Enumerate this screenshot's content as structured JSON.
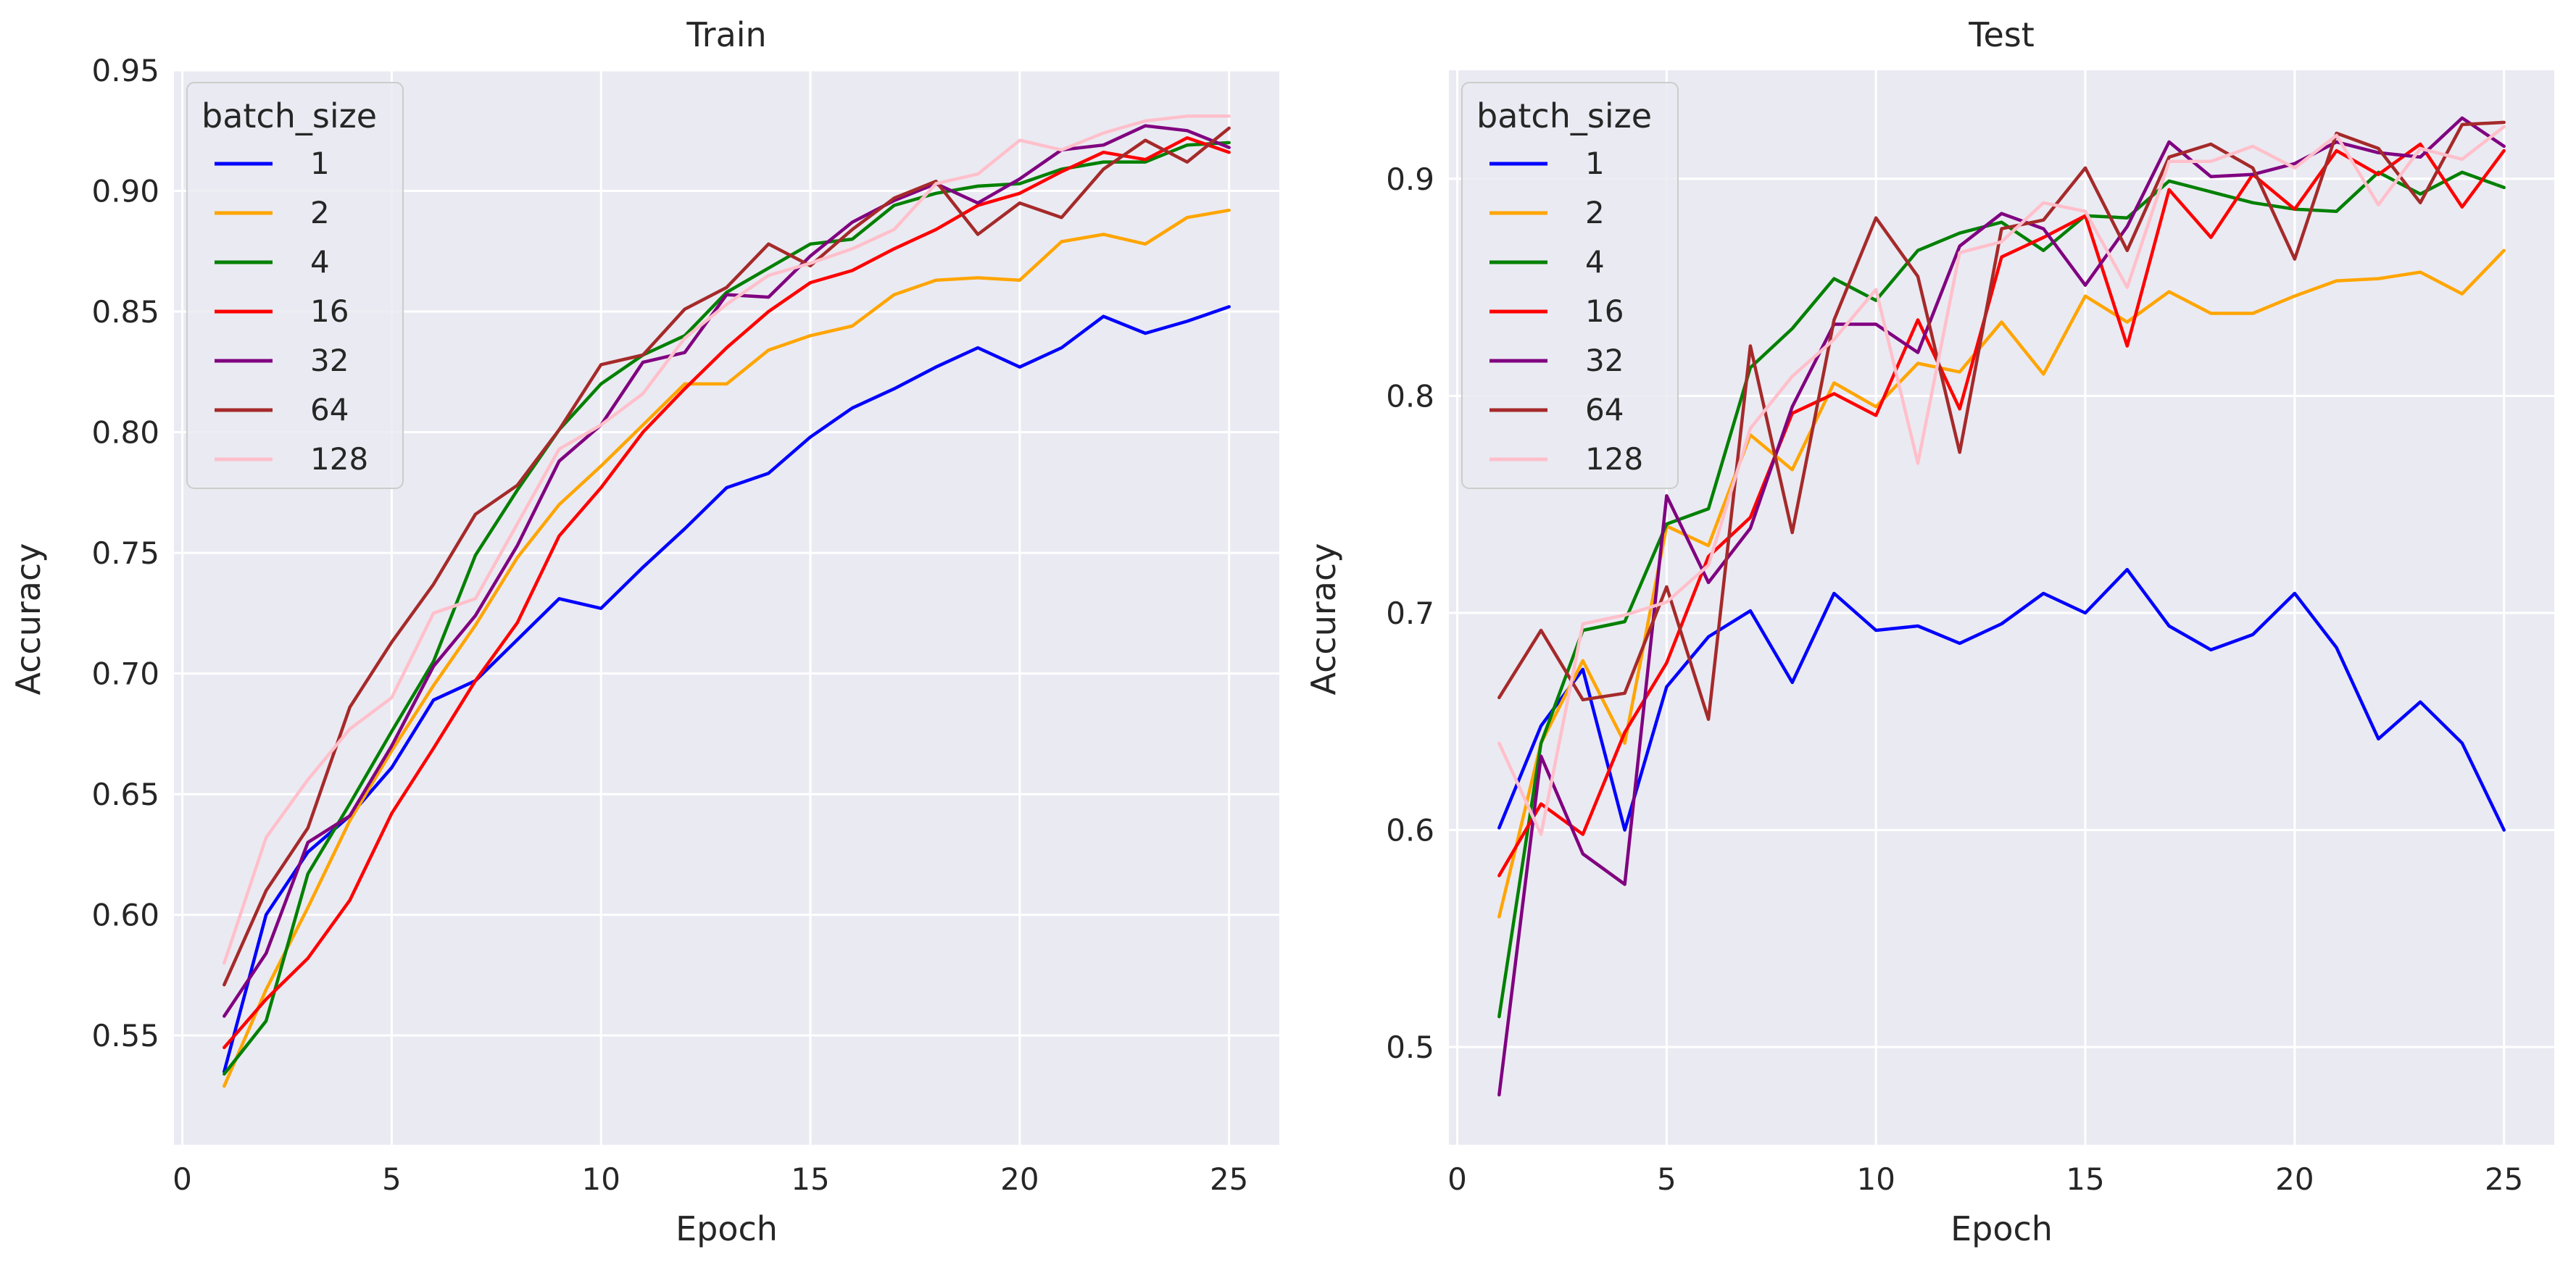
{
  "chart_data": [
    {
      "type": "line",
      "title": "Train",
      "xlabel": "Epoch",
      "ylabel": "Accuracy",
      "xlim": [
        -0.2,
        26.2
      ],
      "ylim": [
        0.5047,
        0.95
      ],
      "xticks": [
        0,
        5,
        10,
        15,
        20,
        25
      ],
      "xtick_labels": [
        "0",
        "5",
        "10",
        "15",
        "20",
        "25"
      ],
      "yticks": [
        0.55,
        0.6,
        0.65,
        0.7,
        0.75,
        0.8,
        0.85,
        0.9,
        0.95
      ],
      "ytick_labels": [
        "0.55",
        "0.60",
        "0.65",
        "0.70",
        "0.75",
        "0.80",
        "0.85",
        "0.90",
        "0.95"
      ],
      "grid": true,
      "legend": {
        "title": "batch_size",
        "position": "top-left"
      },
      "x": [
        1,
        2,
        3,
        4,
        5,
        6,
        7,
        8,
        9,
        10,
        11,
        12,
        13,
        14,
        15,
        16,
        17,
        18,
        19,
        20,
        21,
        22,
        23,
        24,
        25
      ],
      "series": [
        {
          "name": "1",
          "color": "#0000ff",
          "values": [
            0.535,
            0.6,
            0.626,
            0.641,
            0.661,
            0.689,
            0.697,
            0.714,
            0.731,
            0.727,
            0.744,
            0.76,
            0.777,
            0.783,
            0.798,
            0.81,
            0.818,
            0.827,
            0.835,
            0.827,
            0.835,
            0.848,
            0.841,
            0.846,
            0.852
          ]
        },
        {
          "name": "2",
          "color": "#ffa500",
          "values": [
            0.529,
            0.569,
            0.603,
            0.639,
            0.668,
            0.695,
            0.72,
            0.748,
            0.77,
            0.786,
            0.803,
            0.82,
            0.82,
            0.834,
            0.84,
            0.844,
            0.857,
            0.863,
            0.864,
            0.863,
            0.879,
            0.882,
            0.878,
            0.889,
            0.892
          ]
        },
        {
          "name": "4",
          "color": "#008000",
          "values": [
            0.534,
            0.556,
            0.617,
            0.646,
            0.676,
            0.705,
            0.749,
            0.776,
            0.801,
            0.82,
            0.832,
            0.84,
            0.858,
            0.868,
            0.878,
            0.88,
            0.894,
            0.899,
            0.902,
            0.903,
            0.909,
            0.912,
            0.912,
            0.919,
            0.92
          ]
        },
        {
          "name": "16",
          "color": "#ff0000",
          "values": [
            0.545,
            0.565,
            0.582,
            0.606,
            0.642,
            0.669,
            0.697,
            0.721,
            0.757,
            0.777,
            0.8,
            0.818,
            0.835,
            0.85,
            0.862,
            0.867,
            0.876,
            0.884,
            0.894,
            0.899,
            0.908,
            0.916,
            0.913,
            0.922,
            0.916
          ]
        },
        {
          "name": "32",
          "color": "#800080",
          "values": [
            0.558,
            0.584,
            0.63,
            0.641,
            0.67,
            0.703,
            0.724,
            0.753,
            0.788,
            0.803,
            0.829,
            0.833,
            0.857,
            0.856,
            0.873,
            0.887,
            0.896,
            0.903,
            0.895,
            0.905,
            0.917,
            0.919,
            0.927,
            0.925,
            0.918
          ]
        },
        {
          "name": "64",
          "color": "#a52a2a",
          "values": [
            0.571,
            0.61,
            0.636,
            0.686,
            0.713,
            0.737,
            0.766,
            0.778,
            0.801,
            0.828,
            0.832,
            0.851,
            0.86,
            0.878,
            0.869,
            0.884,
            0.897,
            0.904,
            0.882,
            0.895,
            0.889,
            0.909,
            0.921,
            0.912,
            0.926
          ]
        },
        {
          "name": "128",
          "color": "#ffc0cb",
          "values": [
            0.58,
            0.632,
            0.656,
            0.677,
            0.69,
            0.725,
            0.731,
            0.762,
            0.793,
            0.803,
            0.816,
            0.839,
            0.853,
            0.865,
            0.87,
            0.876,
            0.884,
            0.903,
            0.907,
            0.921,
            0.917,
            0.924,
            0.929,
            0.931,
            0.931
          ]
        }
      ]
    },
    {
      "type": "line",
      "title": "Test",
      "xlabel": "Epoch",
      "ylabel": "Accuracy",
      "xlim": [
        -0.2,
        26.2
      ],
      "ylim": [
        0.455,
        0.95
      ],
      "xticks": [
        0,
        5,
        10,
        15,
        20,
        25
      ],
      "xtick_labels": [
        "0",
        "5",
        "10",
        "15",
        "20",
        "25"
      ],
      "yticks": [
        0.5,
        0.6,
        0.7,
        0.8,
        0.9
      ],
      "ytick_labels": [
        "0.5",
        "0.6",
        "0.7",
        "0.8",
        "0.9"
      ],
      "grid": true,
      "legend": {
        "title": "batch_size",
        "position": "top-left"
      },
      "x": [
        1,
        2,
        3,
        4,
        5,
        6,
        7,
        8,
        9,
        10,
        11,
        12,
        13,
        14,
        15,
        16,
        17,
        18,
        19,
        20,
        21,
        22,
        23,
        24,
        25
      ],
      "series": [
        {
          "name": "1",
          "color": "#0000ff",
          "values": [
            0.601,
            0.648,
            0.674,
            0.6,
            0.666,
            0.689,
            0.701,
            0.668,
            0.709,
            0.692,
            0.694,
            0.686,
            0.695,
            0.709,
            0.7,
            0.72,
            0.694,
            0.683,
            0.69,
            0.709,
            0.684,
            0.642,
            0.659,
            0.64,
            0.6
          ]
        },
        {
          "name": "2",
          "color": "#ffa500",
          "values": [
            0.56,
            0.64,
            0.678,
            0.64,
            0.74,
            0.731,
            0.782,
            0.766,
            0.806,
            0.795,
            0.815,
            0.811,
            0.834,
            0.81,
            0.846,
            0.834,
            0.848,
            0.838,
            0.838,
            0.846,
            0.853,
            0.854,
            0.857,
            0.847,
            0.867
          ]
        },
        {
          "name": "4",
          "color": "#008000",
          "values": [
            0.514,
            0.64,
            0.692,
            0.696,
            0.741,
            0.748,
            0.813,
            0.831,
            0.854,
            0.844,
            0.867,
            0.875,
            0.88,
            0.867,
            0.883,
            0.882,
            0.899,
            0.894,
            0.889,
            0.886,
            0.885,
            0.903,
            0.893,
            0.903,
            0.896
          ]
        },
        {
          "name": "16",
          "color": "#ff0000",
          "values": [
            0.579,
            0.612,
            0.598,
            0.645,
            0.677,
            0.726,
            0.744,
            0.792,
            0.801,
            0.791,
            0.835,
            0.794,
            0.864,
            0.873,
            0.883,
            0.823,
            0.895,
            0.873,
            0.902,
            0.886,
            0.913,
            0.902,
            0.916,
            0.887,
            0.913
          ]
        },
        {
          "name": "32",
          "color": "#800080",
          "values": [
            0.478,
            0.634,
            0.589,
            0.575,
            0.754,
            0.714,
            0.739,
            0.795,
            0.833,
            0.833,
            0.82,
            0.869,
            0.884,
            0.877,
            0.851,
            0.878,
            0.917,
            0.901,
            0.902,
            0.907,
            0.917,
            0.912,
            0.91,
            0.928,
            0.915
          ]
        },
        {
          "name": "64",
          "color": "#a52a2a",
          "values": [
            0.661,
            0.692,
            0.66,
            0.663,
            0.712,
            0.651,
            0.823,
            0.737,
            0.835,
            0.882,
            0.855,
            0.774,
            0.877,
            0.881,
            0.905,
            0.867,
            0.91,
            0.916,
            0.905,
            0.863,
            0.921,
            0.914,
            0.889,
            0.925,
            0.926
          ]
        },
        {
          "name": "128",
          "color": "#ffc0cb",
          "values": [
            0.64,
            0.598,
            0.695,
            0.699,
            0.705,
            0.722,
            0.785,
            0.809,
            0.826,
            0.849,
            0.769,
            0.866,
            0.871,
            0.889,
            0.885,
            0.85,
            0.908,
            0.908,
            0.915,
            0.905,
            0.92,
            0.888,
            0.914,
            0.909,
            0.924
          ]
        }
      ]
    }
  ]
}
